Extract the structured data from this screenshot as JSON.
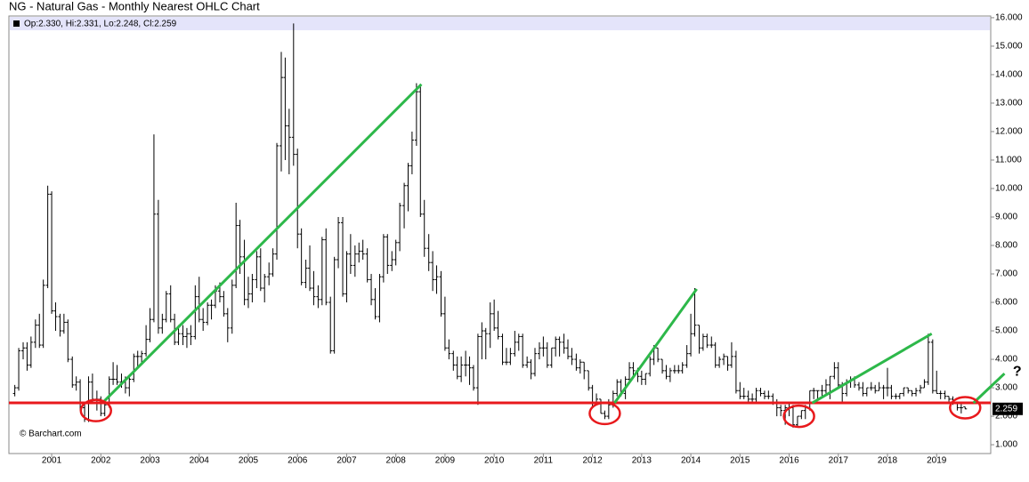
{
  "chart_data": {
    "type": "ohlc",
    "title": "NG - Natural Gas - Monthly Nearest OHLC Chart",
    "info_label": "Op:2.330, Hi:2.331, Lo:2.248, Cl:2.259",
    "price_label": "2.259",
    "source": "© Barchart.com",
    "color": "#000000",
    "xlim": [
      2000.13,
      2020.1
    ],
    "ylim": [
      0.69,
      16.06
    ],
    "xticks": [
      2001,
      2002,
      2003,
      2004,
      2005,
      2006,
      2007,
      2008,
      2009,
      2010,
      2011,
      2012,
      2013,
      2014,
      2015,
      2016,
      2017,
      2018,
      2019
    ],
    "yticks": [
      {
        "value": 1,
        "label": "1.000"
      },
      {
        "value": 2,
        "label": "2.000"
      },
      {
        "value": 3,
        "label": "3.000"
      },
      {
        "value": 4,
        "label": "4.000"
      },
      {
        "value": 5,
        "label": "5.000"
      },
      {
        "value": 6,
        "label": "6.000"
      },
      {
        "value": 7,
        "label": "7.000"
      },
      {
        "value": 8,
        "label": "8.000"
      },
      {
        "value": 9,
        "label": "9.000"
      },
      {
        "value": 10,
        "label": "10.000"
      },
      {
        "value": 11,
        "label": "11.000"
      },
      {
        "value": 12,
        "label": "12.000"
      },
      {
        "value": 13,
        "label": "13.000"
      },
      {
        "value": 14,
        "label": "14.000"
      },
      {
        "value": 15,
        "label": "15.000"
      },
      {
        "value": 16,
        "label": "16.000"
      }
    ],
    "x": [
      2000.25,
      2000.33,
      2000.42,
      2000.5,
      2000.58,
      2000.67,
      2000.75,
      2000.83,
      2000.92,
      2001,
      2001.08,
      2001.17,
      2001.25,
      2001.33,
      2001.42,
      2001.5,
      2001.58,
      2001.67,
      2001.75,
      2001.83,
      2001.92,
      2002,
      2002.08,
      2002.17,
      2002.25,
      2002.33,
      2002.42,
      2002.5,
      2002.58,
      2002.67,
      2002.75,
      2002.83,
      2002.92,
      2003,
      2003.08,
      2003.17,
      2003.25,
      2003.33,
      2003.42,
      2003.5,
      2003.58,
      2003.67,
      2003.75,
      2003.83,
      2003.92,
      2004,
      2004.08,
      2004.17,
      2004.25,
      2004.33,
      2004.42,
      2004.5,
      2004.58,
      2004.67,
      2004.75,
      2004.83,
      2004.92,
      2005,
      2005.08,
      2005.17,
      2005.25,
      2005.33,
      2005.42,
      2005.5,
      2005.58,
      2005.67,
      2005.75,
      2005.83,
      2005.92,
      2006,
      2006.08,
      2006.17,
      2006.25,
      2006.33,
      2006.42,
      2006.5,
      2006.58,
      2006.67,
      2006.75,
      2006.83,
      2006.92,
      2007,
      2007.08,
      2007.17,
      2007.25,
      2007.33,
      2007.42,
      2007.5,
      2007.58,
      2007.67,
      2007.75,
      2007.83,
      2007.92,
      2008,
      2008.08,
      2008.17,
      2008.25,
      2008.33,
      2008.42,
      2008.5,
      2008.58,
      2008.67,
      2008.75,
      2008.83,
      2008.92,
      2009,
      2009.08,
      2009.17,
      2009.25,
      2009.33,
      2009.42,
      2009.5,
      2009.58,
      2009.67,
      2009.75,
      2009.83,
      2009.92,
      2010,
      2010.08,
      2010.17,
      2010.25,
      2010.33,
      2010.42,
      2010.5,
      2010.58,
      2010.67,
      2010.75,
      2010.83,
      2010.92,
      2011,
      2011.08,
      2011.17,
      2011.25,
      2011.33,
      2011.42,
      2011.5,
      2011.58,
      2011.67,
      2011.75,
      2011.83,
      2011.92,
      2012,
      2012.08,
      2012.17,
      2012.25,
      2012.33,
      2012.42,
      2012.5,
      2012.58,
      2012.67,
      2012.75,
      2012.83,
      2012.92,
      2013,
      2013.08,
      2013.17,
      2013.25,
      2013.33,
      2013.42,
      2013.5,
      2013.58,
      2013.67,
      2013.75,
      2013.83,
      2013.92,
      2014,
      2014.08,
      2014.17,
      2014.25,
      2014.33,
      2014.42,
      2014.5,
      2014.58,
      2014.67,
      2014.75,
      2014.83,
      2014.92,
      2015,
      2015.08,
      2015.17,
      2015.25,
      2015.33,
      2015.42,
      2015.5,
      2015.58,
      2015.67,
      2015.75,
      2015.83,
      2015.92,
      2016,
      2016.08,
      2016.17,
      2016.25,
      2016.33,
      2016.42,
      2016.5,
      2016.58,
      2016.67,
      2016.75,
      2016.83,
      2016.92,
      2017,
      2017.08,
      2017.17,
      2017.25,
      2017.33,
      2017.42,
      2017.5,
      2017.58,
      2017.67,
      2017.75,
      2017.83,
      2017.92,
      2018,
      2018.08,
      2018.17,
      2018.25,
      2018.33,
      2018.42,
      2018.5,
      2018.58,
      2018.67,
      2018.75,
      2018.83,
      2018.92,
      2019,
      2019.08,
      2019.17,
      2019.25,
      2019.33,
      2019.42,
      2019.5,
      2019.58
    ],
    "open": [
      2.8,
      3.0,
      4.3,
      4.4,
      3.8,
      4.6,
      5.2,
      4.5,
      6.6,
      9.8,
      5.7,
      5.5,
      5.0,
      5.3,
      4.0,
      3.1,
      3.2,
      2.3,
      1.9,
      3.2,
      2.6,
      2.6,
      2.1,
      2.4,
      3.3,
      3.3,
      3.2,
      3.2,
      3.0,
      3.3,
      4.1,
      4.1,
      4.2,
      4.7,
      5.4,
      9.1,
      5.1,
      5.4,
      6.3,
      5.4,
      4.6,
      4.9,
      4.8,
      4.9,
      4.8,
      6.2,
      5.4,
      5.3,
      5.9,
      5.9,
      6.4,
      6.2,
      5.6,
      5.1,
      6.6,
      8.7,
      7.6,
      6.1,
      6.3,
      6.8,
      7.6,
      6.5,
      6.9,
      7.0,
      7.7,
      11.5,
      13.9,
      12.2,
      11.8,
      11.2,
      8.4,
      6.7,
      7.2,
      6.5,
      6.2,
      6.1,
      8.2,
      6.0,
      4.3,
      7.5,
      8.8,
      6.3,
      7.7,
      7.3,
      7.7,
      7.8,
      7.7,
      6.8,
      6.1,
      5.5,
      6.9,
      8.3,
      7.3,
      7.5,
      8.1,
      9.4,
      10.1,
      10.8,
      11.7,
      13.4,
      9.1,
      7.9,
      7.4,
      6.8,
      6.9,
      5.6,
      4.4,
      4.2,
      3.8,
      3.4,
      3.8,
      3.8,
      3.7,
      3.0,
      4.8,
      5.0,
      4.9,
      5.6,
      5.1,
      4.8,
      3.9,
      3.9,
      4.2,
      4.6,
      4.8,
      3.8,
      3.9,
      3.5,
      4.2,
      4.4,
      4.4,
      3.8,
      4.4,
      4.7,
      4.6,
      4.4,
      4.1,
      4.0,
      3.7,
      3.9,
      3.6,
      3.0,
      2.5,
      2.6,
      2.1,
      2.0,
      2.4,
      2.8,
      3.2,
      2.8,
      3.3,
      3.7,
      3.6,
      3.4,
      3.3,
      3.5,
      4.0,
      4.4,
      4.0,
      3.6,
      3.4,
      3.6,
      3.6,
      3.6,
      3.8,
      4.2,
      4.9,
      5.2,
      4.4,
      4.8,
      4.5,
      4.5,
      3.8,
      4.0,
      4.1,
      3.8,
      4.1,
      2.9,
      2.7,
      2.7,
      2.6,
      2.6,
      2.9,
      2.8,
      2.7,
      2.7,
      2.5,
      2.3,
      2.2,
      2.3,
      2.3,
      1.7,
      2.0,
      2.2,
      2.3,
      2.9,
      2.9,
      2.9,
      2.9,
      3.1,
      3.4,
      3.7,
      3.1,
      2.8,
      3.2,
      3.3,
      3.1,
      3.0,
      2.8,
      3.0,
      3.0,
      2.9,
      3.0,
      3.0,
      3.0,
      2.7,
      2.7,
      2.8,
      3.0,
      2.9,
      2.8,
      2.9,
      3.0,
      3.2,
      4.6,
      2.9,
      2.8,
      2.8,
      2.7,
      2.6,
      2.5,
      2.3,
      2.33
    ],
    "high": [
      3.1,
      4.4,
      4.6,
      4.6,
      4.8,
      5.4,
      5.6,
      6.8,
      10.1,
      9.9,
      6.0,
      5.6,
      5.6,
      5.4,
      4.1,
      3.4,
      3.3,
      2.5,
      3.4,
      3.5,
      2.9,
      2.7,
      2.5,
      3.4,
      3.9,
      3.8,
      3.5,
      3.4,
      3.4,
      4.2,
      4.3,
      4.3,
      5.2,
      5.8,
      11.9,
      9.6,
      5.6,
      6.4,
      6.6,
      5.6,
      5.2,
      5.2,
      5.1,
      5.2,
      6.6,
      6.9,
      5.8,
      6.0,
      6.1,
      6.6,
      6.7,
      6.4,
      5.8,
      6.8,
      9.5,
      8.9,
      8.2,
      6.9,
      7.0,
      7.8,
      7.9,
      7.0,
      7.4,
      7.9,
      11.6,
      14.8,
      14.6,
      12.8,
      15.8,
      11.4,
      8.6,
      7.5,
      8.0,
      7.1,
      6.6,
      8.3,
      8.6,
      6.2,
      7.6,
      9.0,
      9.0,
      7.8,
      8.4,
      8.0,
      8.1,
      8.2,
      7.9,
      7.0,
      6.5,
      7.0,
      8.4,
      8.4,
      7.8,
      8.2,
      9.5,
      10.2,
      10.9,
      12.0,
      13.7,
      13.6,
      9.6,
      8.4,
      7.8,
      7.3,
      7.1,
      6.2,
      4.7,
      4.3,
      4.1,
      4.1,
      4.3,
      4.1,
      3.8,
      4.9,
      5.3,
      5.1,
      6.0,
      6.1,
      5.7,
      4.9,
      4.4,
      4.4,
      5.0,
      4.9,
      4.9,
      4.1,
      4.0,
      4.4,
      4.6,
      4.8,
      4.6,
      4.4,
      4.8,
      4.8,
      4.9,
      4.7,
      4.4,
      4.2,
      4.0,
      3.9,
      3.6,
      3.1,
      2.8,
      2.6,
      2.2,
      2.6,
      2.9,
      3.3,
      3.3,
      3.4,
      3.9,
      3.9,
      3.7,
      3.6,
      3.5,
      4.1,
      4.5,
      4.4,
      4.0,
      3.8,
      3.7,
      3.8,
      3.8,
      3.9,
      4.5,
      5.6,
      6.5,
      5.2,
      4.9,
      4.9,
      4.8,
      4.6,
      4.1,
      4.2,
      4.1,
      4.6,
      4.3,
      3.2,
      3.0,
      2.9,
      2.8,
      3.0,
      3.0,
      2.9,
      2.9,
      2.8,
      2.6,
      2.4,
      2.4,
      2.5,
      2.4,
      2.0,
      2.2,
      2.4,
      2.9,
      3.0,
      2.9,
      3.1,
      3.3,
      3.4,
      3.9,
      3.9,
      3.2,
      3.3,
      3.4,
      3.4,
      3.2,
      3.2,
      3.0,
      3.2,
      3.1,
      3.2,
      3.1,
      3.7,
      3.1,
      2.8,
      2.8,
      3.0,
      3.0,
      2.9,
      3.0,
      3.1,
      3.3,
      4.9,
      4.7,
      3.6,
      2.9,
      2.9,
      2.7,
      2.7,
      2.5,
      2.5,
      2.331
    ],
    "low": [
      2.7,
      2.9,
      4.0,
      3.6,
      3.7,
      4.4,
      4.4,
      4.4,
      6.5,
      5.6,
      5.0,
      4.8,
      4.9,
      3.9,
      3.0,
      2.9,
      2.2,
      1.8,
      1.8,
      2.5,
      2.2,
      2.0,
      2.0,
      2.3,
      3.1,
      3.1,
      3.0,
      2.8,
      2.7,
      3.2,
      3.7,
      3.8,
      4.1,
      4.6,
      5.3,
      4.9,
      4.9,
      5.3,
      5.3,
      4.5,
      4.5,
      4.5,
      4.4,
      4.5,
      4.7,
      5.3,
      5.0,
      5.2,
      5.4,
      5.8,
      6.0,
      5.5,
      4.6,
      4.9,
      6.5,
      7.0,
      5.9,
      5.8,
      6.0,
      6.5,
      6.4,
      6.0,
      6.6,
      6.9,
      7.5,
      10.6,
      11.0,
      10.5,
      10.8,
      7.9,
      6.6,
      6.5,
      6.4,
      5.9,
      5.8,
      5.9,
      5.9,
      4.2,
      4.2,
      7.2,
      6.2,
      6.0,
      7.0,
      6.9,
      7.4,
      7.5,
      6.7,
      5.9,
      5.4,
      5.3,
      6.7,
      7.0,
      7.1,
      7.3,
      7.8,
      8.6,
      9.2,
      10.5,
      11.5,
      9.0,
      7.6,
      7.1,
      6.4,
      6.3,
      5.5,
      4.3,
      4.0,
      3.6,
      3.3,
      3.2,
      3.4,
      3.1,
      2.9,
      2.4,
      4.0,
      4.0,
      4.4,
      5.0,
      4.7,
      3.8,
      3.8,
      3.8,
      4.1,
      4.3,
      3.7,
      3.7,
      3.3,
      3.4,
      4.0,
      4.1,
      3.7,
      3.7,
      4.1,
      4.1,
      4.2,
      4.0,
      3.8,
      3.6,
      3.5,
      3.3,
      2.9,
      2.3,
      2.4,
      2.1,
      1.9,
      1.9,
      2.3,
      2.7,
      2.7,
      2.6,
      3.2,
      3.4,
      3.2,
      3.1,
      3.1,
      3.4,
      3.8,
      3.9,
      3.5,
      3.3,
      3.2,
      3.5,
      3.5,
      3.5,
      3.7,
      4.1,
      4.8,
      4.2,
      4.3,
      4.4,
      4.4,
      3.7,
      3.7,
      3.8,
      3.6,
      3.7,
      2.8,
      2.6,
      2.6,
      2.5,
      2.5,
      2.5,
      2.7,
      2.6,
      2.6,
      2.4,
      2.0,
      2.0,
      1.7,
      2.0,
      1.6,
      1.6,
      1.9,
      1.9,
      2.2,
      2.6,
      2.6,
      2.7,
      2.8,
      2.6,
      3.3,
      3.0,
      2.5,
      2.7,
      3.0,
      3.0,
      2.9,
      2.7,
      2.7,
      2.9,
      2.8,
      2.9,
      2.6,
      2.7,
      2.6,
      2.6,
      2.6,
      2.7,
      2.8,
      2.7,
      2.7,
      2.8,
      3.0,
      3.1,
      2.8,
      2.8,
      2.6,
      2.6,
      2.5,
      2.4,
      2.2,
      2.1,
      2.248
    ],
    "close": [
      3.0,
      4.3,
      4.4,
      3.8,
      4.6,
      5.2,
      4.5,
      6.6,
      9.8,
      5.7,
      5.5,
      5.0,
      5.3,
      4.0,
      3.1,
      3.2,
      2.3,
      1.9,
      3.2,
      2.6,
      2.6,
      2.1,
      2.4,
      3.3,
      3.3,
      3.2,
      3.2,
      3.0,
      3.3,
      4.1,
      4.1,
      4.2,
      4.7,
      5.4,
      9.1,
      5.1,
      5.4,
      6.3,
      5.4,
      4.6,
      4.9,
      4.8,
      4.9,
      4.8,
      6.2,
      5.4,
      5.3,
      5.9,
      5.9,
      6.4,
      6.2,
      5.6,
      5.1,
      6.6,
      8.7,
      7.6,
      6.1,
      6.3,
      6.8,
      7.6,
      6.5,
      6.9,
      7.0,
      7.7,
      11.5,
      13.9,
      12.2,
      11.8,
      11.2,
      8.4,
      6.7,
      7.2,
      6.5,
      6.2,
      6.1,
      8.2,
      6.0,
      4.3,
      7.5,
      8.8,
      6.3,
      7.7,
      7.3,
      7.7,
      7.8,
      7.7,
      6.8,
      6.1,
      5.5,
      6.9,
      8.3,
      7.3,
      7.5,
      8.1,
      9.4,
      10.1,
      10.8,
      11.7,
      13.4,
      9.1,
      7.9,
      7.4,
      6.8,
      6.9,
      5.6,
      4.4,
      4.2,
      3.8,
      3.4,
      3.8,
      3.8,
      3.7,
      3.0,
      4.8,
      5.0,
      4.9,
      5.6,
      5.1,
      4.8,
      3.9,
      3.9,
      4.2,
      4.6,
      4.8,
      3.8,
      3.9,
      3.5,
      4.2,
      4.4,
      4.4,
      3.8,
      4.4,
      4.7,
      4.6,
      4.4,
      4.1,
      4.0,
      3.7,
      3.9,
      3.6,
      3.0,
      2.5,
      2.6,
      2.1,
      2.0,
      2.4,
      2.8,
      3.2,
      2.8,
      3.3,
      3.7,
      3.6,
      3.4,
      3.3,
      3.5,
      4.0,
      4.4,
      4.0,
      3.6,
      3.4,
      3.6,
      3.6,
      3.6,
      3.8,
      4.2,
      4.9,
      5.2,
      4.4,
      4.8,
      4.5,
      4.5,
      3.8,
      4.0,
      4.1,
      3.8,
      4.1,
      2.9,
      2.7,
      2.7,
      2.6,
      2.6,
      2.9,
      2.8,
      2.7,
      2.7,
      2.5,
      2.3,
      2.2,
      2.3,
      2.3,
      1.7,
      2.0,
      2.2,
      2.3,
      2.9,
      2.9,
      2.9,
      2.9,
      3.1,
      3.4,
      3.7,
      3.1,
      2.8,
      3.2,
      3.3,
      3.1,
      3.0,
      2.8,
      3.0,
      3.0,
      2.9,
      3.0,
      3.0,
      3.0,
      2.7,
      2.7,
      2.8,
      3.0,
      2.9,
      2.8,
      2.9,
      3.0,
      3.2,
      4.6,
      2.9,
      2.8,
      2.8,
      2.7,
      2.6,
      2.5,
      2.3,
      2.3,
      2.259
    ],
    "support_line": {
      "y": 2.47,
      "color": "#e8191c"
    },
    "trend_lines": [
      {
        "x": [
          2002.05,
          2008.52
        ],
        "y": [
          2.5,
          13.66
        ],
        "color": "#2db84a"
      },
      {
        "x": [
          2012.45,
          2014.12
        ],
        "y": [
          2.47,
          6.47
        ],
        "color": "#2db84a"
      },
      {
        "x": [
          2016.47,
          2018.9
        ],
        "y": [
          2.47,
          4.9
        ],
        "color": "#2db84a"
      },
      {
        "x": [
          2019.75,
          2020.38
        ],
        "y": [
          2.47,
          3.5
        ],
        "color": "#2db84a"
      }
    ],
    "circles": [
      {
        "x": 2001.9,
        "y": 2.2,
        "color": "#e8191c"
      },
      {
        "x": 2012.25,
        "y": 2.1,
        "color": "#e8191c"
      },
      {
        "x": 2016.2,
        "y": 2.0,
        "color": "#e8191c"
      },
      {
        "x": 2019.58,
        "y": 2.3,
        "color": "#e8191c"
      }
    ],
    "annotation": {
      "text": "?",
      "x": 2020.55,
      "y": 3.55,
      "color": "#2db84a"
    }
  }
}
